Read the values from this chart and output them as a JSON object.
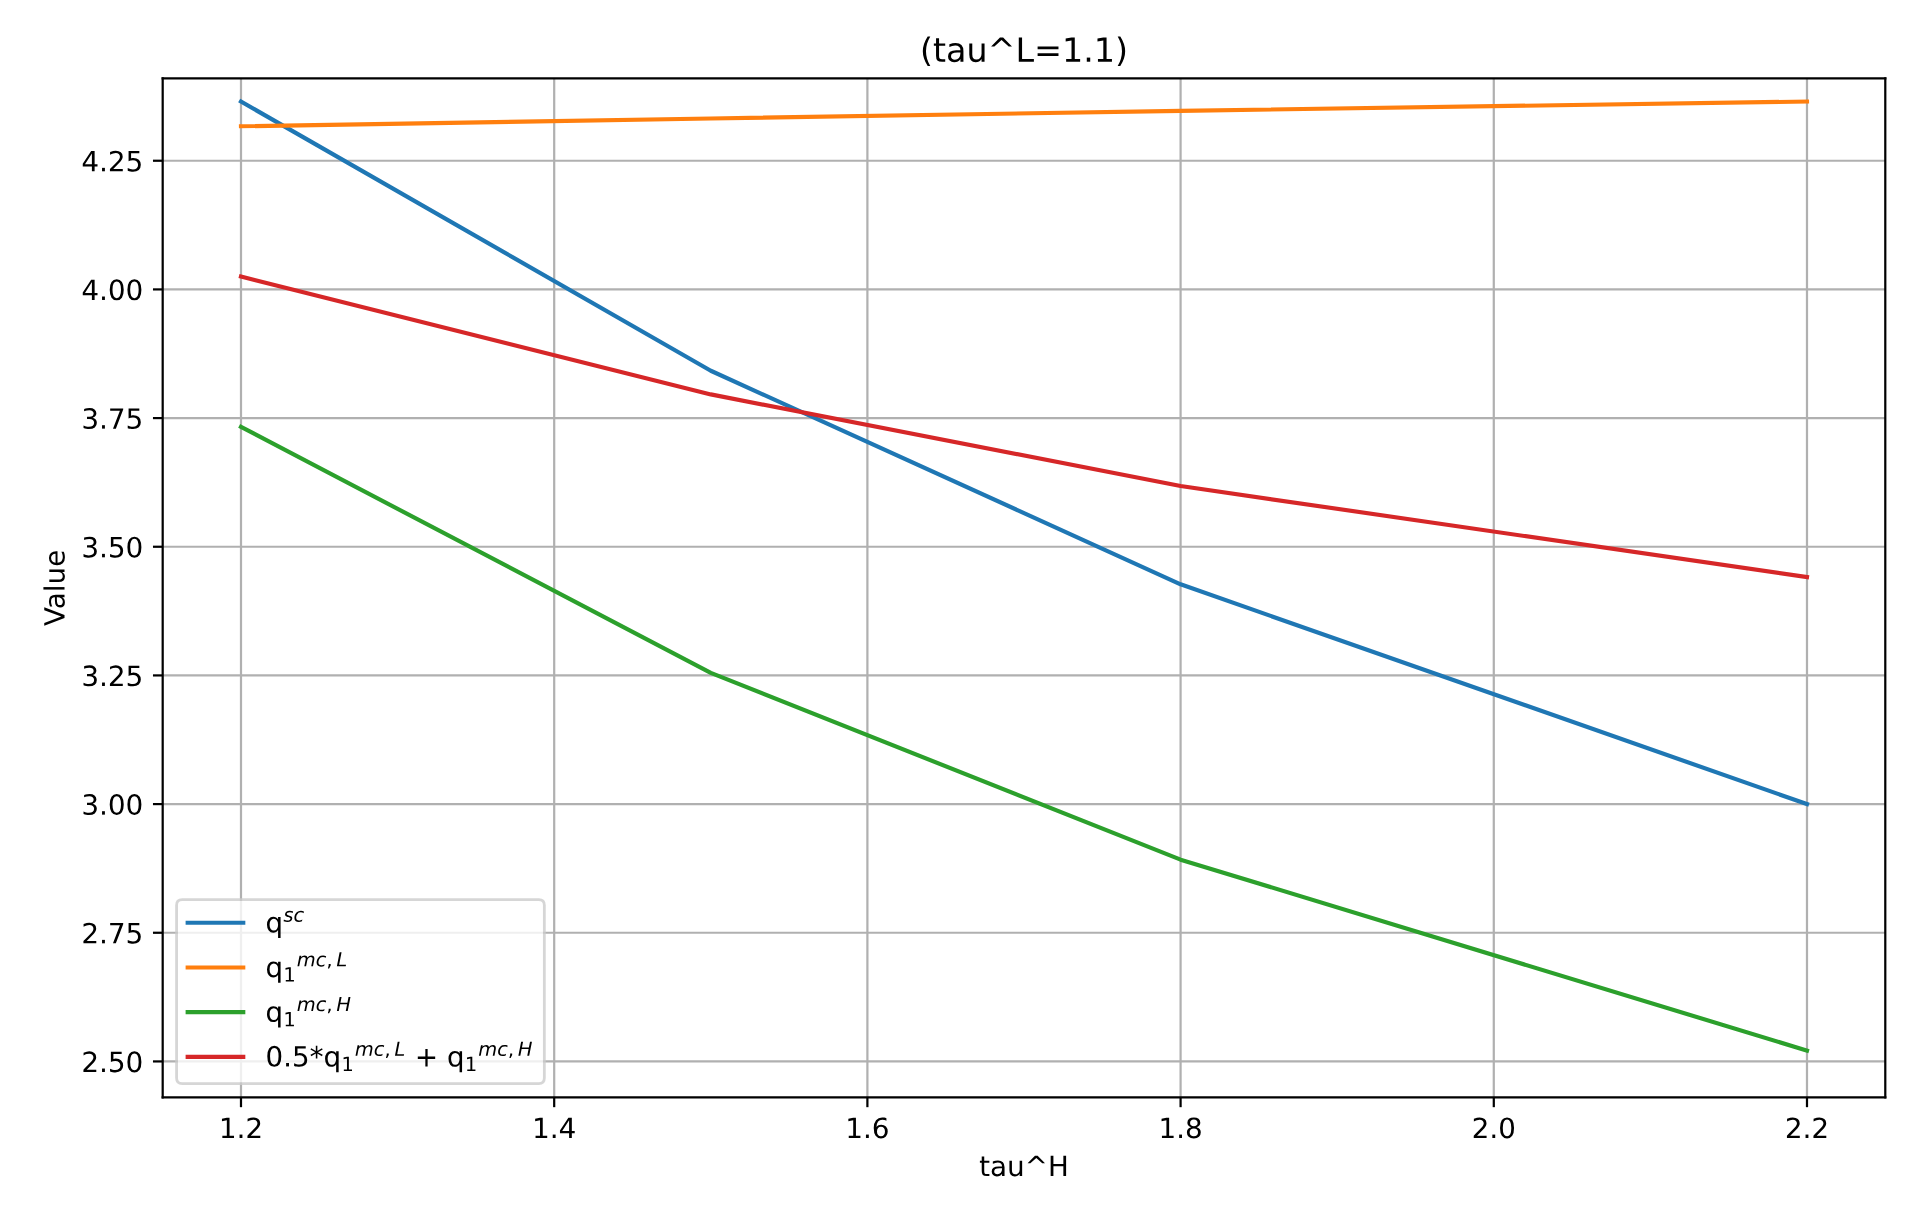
{
  "chart_data": {
    "type": "line",
    "title": "(tau^L=1.1)",
    "xlabel": "tau^H",
    "ylabel": "Value",
    "x": [
      1.2,
      1.5,
      1.8,
      2.2
    ],
    "series": [
      {
        "name": "q$^{sc}$",
        "color": "#1f77b4",
        "values": [
          4.365,
          3.842,
          3.427,
          3.0
        ]
      },
      {
        "name": "q$_{1}$$^{mc,L}$",
        "color": "#ff7f0e",
        "values": [
          4.317,
          4.332,
          4.347,
          4.365
        ]
      },
      {
        "name": "q$_{1}$$^{mc,H}$",
        "color": "#2ca02c",
        "values": [
          3.733,
          3.255,
          2.892,
          2.521
        ]
      },
      {
        "name": "0.5*q$_{1}$$^{mc,L}$ + q$_{1}$$^{mc,H}$",
        "color": "#d62728",
        "values": [
          4.025,
          3.796,
          3.618,
          3.441
        ]
      }
    ],
    "xlim": [
      1.15,
      2.25
    ],
    "xticks": [
      {
        "value": 1.2,
        "label": "1.2"
      },
      {
        "value": 1.4,
        "label": "1.4"
      },
      {
        "value": 1.6,
        "label": "1.6"
      },
      {
        "value": 1.8,
        "label": "1.8"
      },
      {
        "value": 2.0,
        "label": "2.0"
      },
      {
        "value": 2.2,
        "label": "2.2"
      }
    ],
    "ylim": [
      2.43,
      4.41
    ],
    "yticks": [
      {
        "value": 2.5,
        "label": "2.50"
      },
      {
        "value": 2.75,
        "label": "2.75"
      },
      {
        "value": 3.0,
        "label": "3.00"
      },
      {
        "value": 3.25,
        "label": "3.25"
      },
      {
        "value": 3.5,
        "label": "3.50"
      },
      {
        "value": 3.75,
        "label": "3.75"
      },
      {
        "value": 4.0,
        "label": "4.00"
      },
      {
        "value": 4.25,
        "label": "4.25"
      }
    ],
    "grid": true,
    "legend": "lower left",
    "marker": "none",
    "line_style": "solid"
  }
}
